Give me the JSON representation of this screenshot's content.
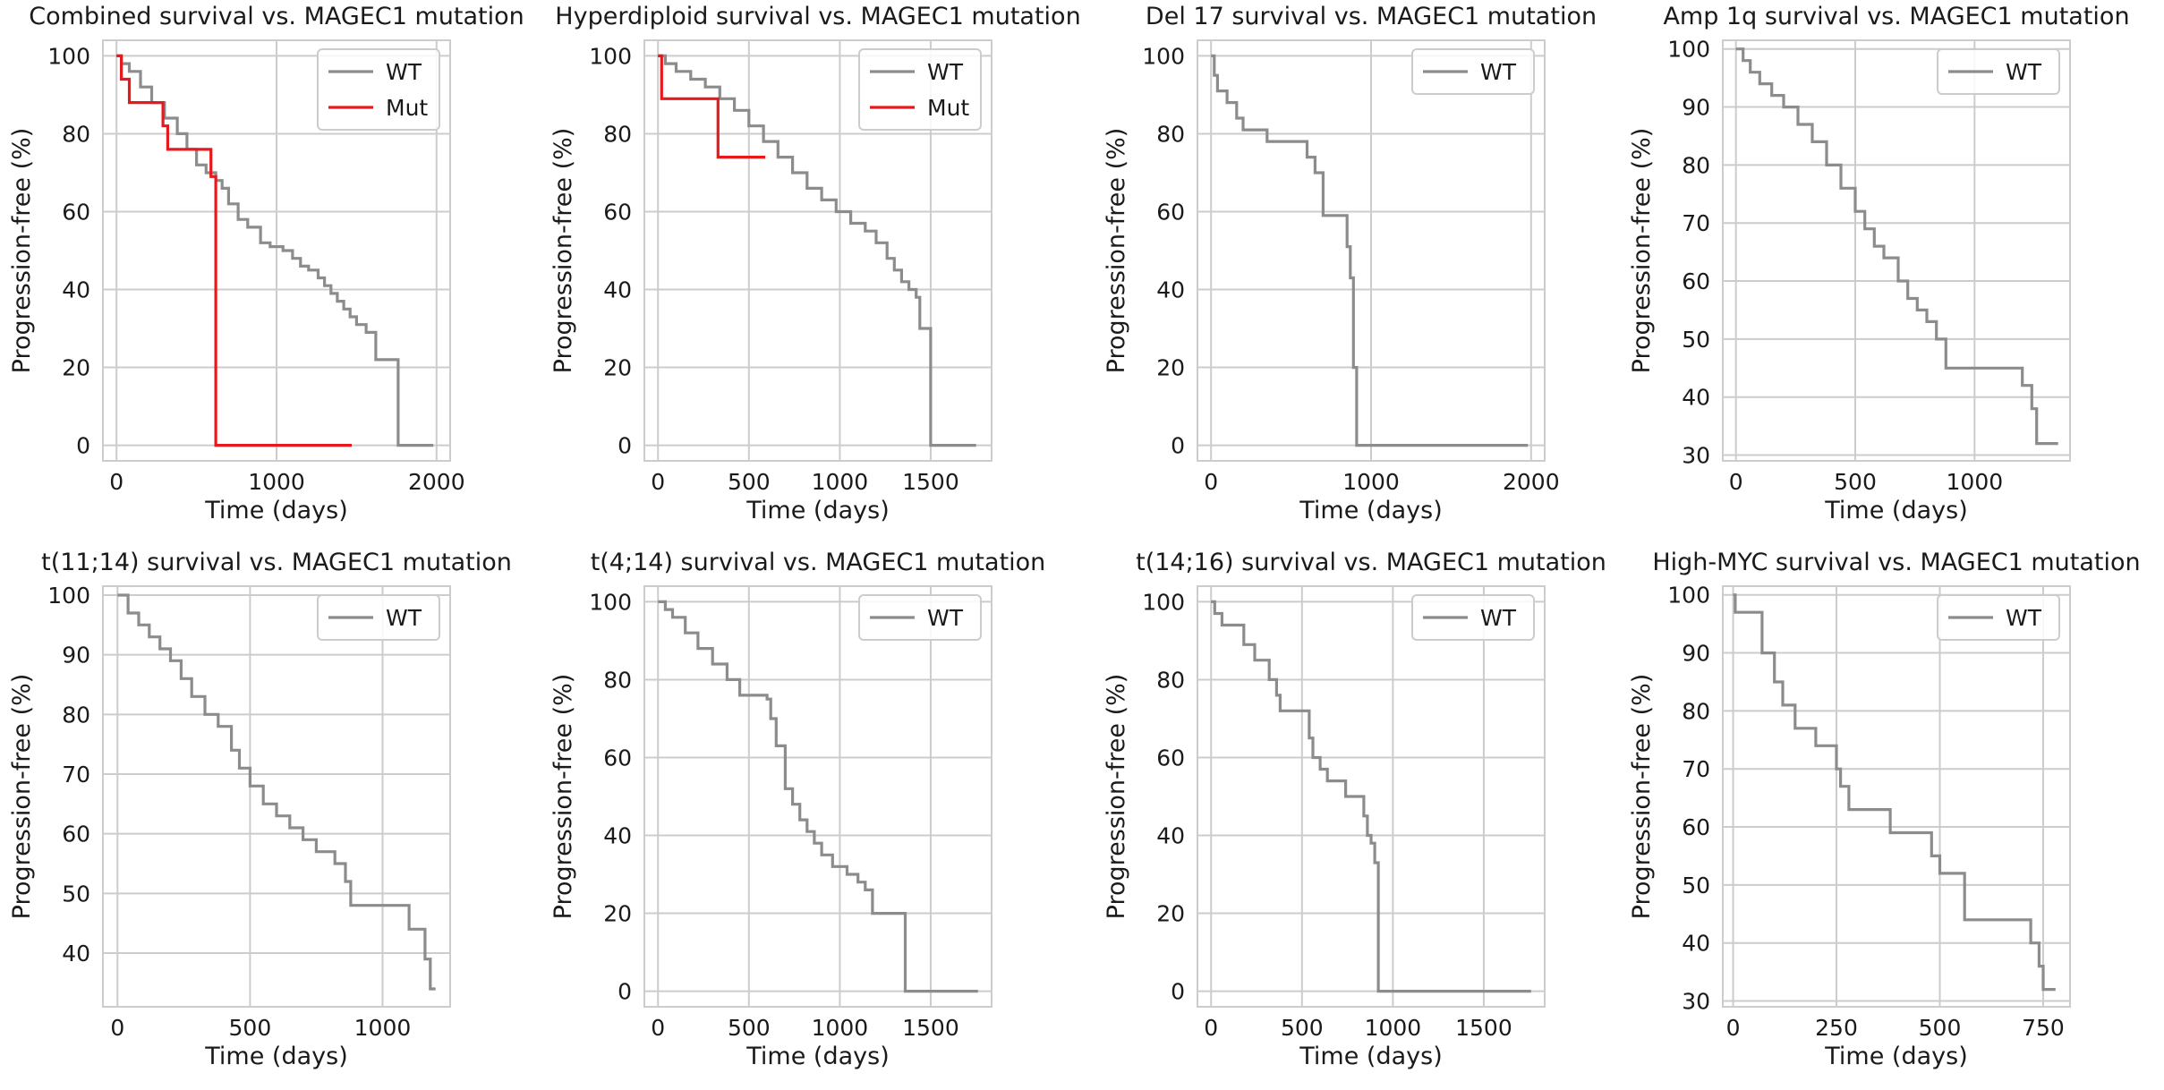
{
  "colors": {
    "wt": "#8c8c8c",
    "mut": "#e8191d",
    "grid": "#cccccc",
    "spine": "#cccccc",
    "text": "#1a1a1a",
    "legend_border": "#cccccc"
  },
  "chart_data": [
    {
      "type": "line",
      "title": "Combined survival vs. MAGEC1 mutation",
      "xlabel": "Time (days)",
      "ylabel": "Progression-free (%)",
      "xlim": [
        -85,
        2085
      ],
      "ylim": [
        -4,
        104
      ],
      "xticks": [
        0,
        1000,
        2000
      ],
      "yticks": [
        0,
        20,
        40,
        60,
        80,
        100
      ],
      "grid": true,
      "legend": "top-right",
      "series": [
        {
          "name": "WT",
          "color": "#8c8c8c",
          "x": [
            0,
            30,
            80,
            150,
            220,
            300,
            380,
            440,
            500,
            560,
            620,
            660,
            700,
            760,
            820,
            900,
            960,
            1040,
            1100,
            1150,
            1200,
            1260,
            1300,
            1340,
            1380,
            1420,
            1460,
            1500,
            1560,
            1600,
            1620,
            1720,
            1760,
            1980
          ],
          "y": [
            100,
            98,
            96,
            92,
            88,
            84,
            80,
            76,
            72,
            70,
            68,
            66,
            62,
            58,
            56,
            52,
            51,
            50,
            48,
            46,
            45,
            43,
            41,
            39,
            37,
            35,
            33,
            31,
            29,
            29,
            22,
            22,
            0,
            0
          ]
        },
        {
          "name": "Mut",
          "color": "#e8191d",
          "x": [
            0,
            30,
            80,
            290,
            320,
            590,
            620,
            1470
          ],
          "y": [
            100,
            94,
            88,
            82,
            76,
            69,
            0,
            0
          ]
        }
      ]
    },
    {
      "type": "line",
      "title": "Hyperdiploid survival vs. MAGEC1 mutation",
      "xlabel": "Time (days)",
      "ylabel": "Progression-free (%)",
      "xlim": [
        -75,
        1835
      ],
      "ylim": [
        -4,
        104
      ],
      "xticks": [
        0,
        500,
        1000,
        1500
      ],
      "yticks": [
        0,
        20,
        40,
        60,
        80,
        100
      ],
      "grid": true,
      "legend": "top-right",
      "series": [
        {
          "name": "WT",
          "color": "#8c8c8c",
          "x": [
            0,
            40,
            100,
            180,
            260,
            340,
            420,
            500,
            580,
            660,
            740,
            820,
            900,
            980,
            1060,
            1140,
            1200,
            1260,
            1300,
            1340,
            1380,
            1420,
            1440,
            1480,
            1500,
            1750
          ],
          "y": [
            100,
            98,
            96,
            94,
            92,
            89,
            86,
            82,
            78,
            74,
            70,
            66,
            63,
            60,
            57,
            55,
            52,
            48,
            45,
            42,
            40,
            38,
            30,
            30,
            0,
            0
          ]
        },
        {
          "name": "Mut",
          "color": "#e8191d",
          "x": [
            0,
            20,
            300,
            330,
            590
          ],
          "y": [
            100,
            89,
            89,
            74,
            74
          ]
        }
      ]
    },
    {
      "type": "line",
      "title": "Del 17 survival vs. MAGEC1 mutation",
      "xlabel": "Time (days)",
      "ylabel": "Progression-free (%)",
      "xlim": [
        -85,
        2085
      ],
      "ylim": [
        -4,
        104
      ],
      "xticks": [
        0,
        1000,
        2000
      ],
      "yticks": [
        0,
        20,
        40,
        60,
        80,
        100
      ],
      "grid": true,
      "legend": "top-right",
      "series": [
        {
          "name": "WT",
          "color": "#8c8c8c",
          "x": [
            0,
            20,
            40,
            100,
            160,
            200,
            350,
            600,
            650,
            700,
            850,
            870,
            890,
            910,
            1980
          ],
          "y": [
            100,
            95,
            91,
            88,
            84,
            81,
            78,
            74,
            70,
            59,
            51,
            43,
            20,
            0,
            0
          ]
        }
      ]
    },
    {
      "type": "line",
      "title": "Amp 1q survival vs. MAGEC1 mutation",
      "xlabel": "Time (days)",
      "ylabel": "Progression-free (%)",
      "xlim": [
        -55,
        1400
      ],
      "ylim": [
        29,
        101.5
      ],
      "xticks": [
        0,
        500,
        1000
      ],
      "yticks": [
        30,
        40,
        50,
        60,
        70,
        80,
        90,
        100
      ],
      "grid": true,
      "legend": "top-right",
      "series": [
        {
          "name": "WT",
          "color": "#8c8c8c",
          "x": [
            0,
            30,
            60,
            100,
            150,
            200,
            260,
            320,
            380,
            440,
            500,
            540,
            580,
            620,
            680,
            720,
            760,
            800,
            840,
            880,
            1150,
            1200,
            1240,
            1260,
            1350
          ],
          "y": [
            100,
            98,
            96,
            94,
            92,
            90,
            87,
            84,
            80,
            76,
            72,
            69,
            66,
            64,
            60,
            57,
            55,
            53,
            50,
            45,
            45,
            42,
            38,
            32,
            32
          ]
        }
      ]
    },
    {
      "type": "line",
      "title": "t(11;14) survival vs. MAGEC1 mutation",
      "xlabel": "Time (days)",
      "ylabel": "Progression-free (%)",
      "xlim": [
        -55,
        1255
      ],
      "ylim": [
        31,
        101.5
      ],
      "xticks": [
        0,
        500,
        1000
      ],
      "yticks": [
        40,
        50,
        60,
        70,
        80,
        90,
        100
      ],
      "grid": true,
      "legend": "top-right",
      "series": [
        {
          "name": "WT",
          "color": "#8c8c8c",
          "x": [
            0,
            40,
            80,
            120,
            160,
            200,
            240,
            280,
            330,
            380,
            430,
            460,
            500,
            550,
            600,
            650,
            700,
            750,
            820,
            860,
            880,
            1050,
            1100,
            1160,
            1180,
            1200
          ],
          "y": [
            100,
            97,
            95,
            93,
            91,
            89,
            86,
            83,
            80,
            78,
            74,
            71,
            68,
            65,
            63,
            61,
            59,
            57,
            55,
            52,
            48,
            48,
            44,
            39,
            34,
            34
          ]
        }
      ]
    },
    {
      "type": "line",
      "title": "t(4;14) survival vs. MAGEC1 mutation",
      "xlabel": "Time (days)",
      "ylabel": "Progression-free (%)",
      "xlim": [
        -75,
        1835
      ],
      "ylim": [
        -4,
        104
      ],
      "xticks": [
        0,
        500,
        1000,
        1500
      ],
      "yticks": [
        0,
        20,
        40,
        60,
        80,
        100
      ],
      "grid": true,
      "legend": "top-right",
      "series": [
        {
          "name": "WT",
          "color": "#8c8c8c",
          "x": [
            0,
            40,
            80,
            150,
            220,
            300,
            380,
            450,
            600,
            620,
            650,
            700,
            740,
            780,
            820,
            860,
            900,
            960,
            1040,
            1100,
            1140,
            1180,
            1360,
            1760
          ],
          "y": [
            100,
            98,
            96,
            92,
            88,
            84,
            80,
            76,
            75,
            70,
            63,
            52,
            48,
            44,
            41,
            38,
            35,
            32,
            30,
            28,
            26,
            20,
            0,
            0
          ]
        }
      ]
    },
    {
      "type": "line",
      "title": "t(14;16) survival vs. MAGEC1 mutation",
      "xlabel": "Time (days)",
      "ylabel": "Progression-free (%)",
      "xlim": [
        -75,
        1835
      ],
      "ylim": [
        -4,
        104
      ],
      "xticks": [
        0,
        500,
        1000,
        1500
      ],
      "yticks": [
        0,
        20,
        40,
        60,
        80,
        100
      ],
      "grid": true,
      "legend": "top-right",
      "series": [
        {
          "name": "WT",
          "color": "#8c8c8c",
          "x": [
            0,
            20,
            60,
            180,
            240,
            320,
            360,
            380,
            540,
            560,
            600,
            640,
            740,
            840,
            860,
            880,
            900,
            920,
            1760
          ],
          "y": [
            100,
            97,
            94,
            89,
            85,
            80,
            76,
            72,
            65,
            60,
            57,
            54,
            50,
            45,
            40,
            38,
            33,
            0,
            0
          ]
        }
      ]
    },
    {
      "type": "line",
      "title": "High-MYC survival vs. MAGEC1 mutation",
      "xlabel": "Time (days)",
      "ylabel": "Progression-free (%)",
      "xlim": [
        -25,
        815
      ],
      "ylim": [
        29,
        101.5
      ],
      "xticks": [
        0,
        250,
        500,
        750
      ],
      "yticks": [
        30,
        40,
        50,
        60,
        70,
        80,
        90,
        100
      ],
      "grid": true,
      "legend": "top-right",
      "series": [
        {
          "name": "WT",
          "color": "#8c8c8c",
          "x": [
            0,
            5,
            70,
            100,
            120,
            150,
            200,
            250,
            260,
            280,
            380,
            480,
            500,
            560,
            720,
            740,
            750,
            780
          ],
          "y": [
            100,
            97,
            90,
            85,
            81,
            77,
            74,
            70,
            67,
            63,
            59,
            55,
            52,
            44,
            40,
            36,
            32,
            32
          ]
        }
      ]
    }
  ]
}
